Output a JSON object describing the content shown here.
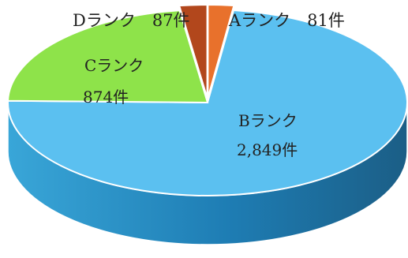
{
  "chart_data": {
    "type": "pie",
    "style": "3d",
    "slices": [
      {
        "name": "Aランク",
        "value": 81,
        "value_label": "81件",
        "color": "#E8712C"
      },
      {
        "name": "Bランク",
        "value": 2849,
        "value_label": "2,849件",
        "color": "#5BC0F0"
      },
      {
        "name": "Cランク",
        "value": 874,
        "value_label": "874件",
        "color": "#8EE34A"
      },
      {
        "name": "Dランク",
        "value": 87,
        "value_label": "87件",
        "color": "#B2471C"
      }
    ],
    "labels": {
      "a": "Aランク　81件",
      "b_name": "Bランク",
      "b_value": "2,849件",
      "c_name": "Cランク",
      "c_value": "874件",
      "d": "Dランク　87件"
    }
  }
}
